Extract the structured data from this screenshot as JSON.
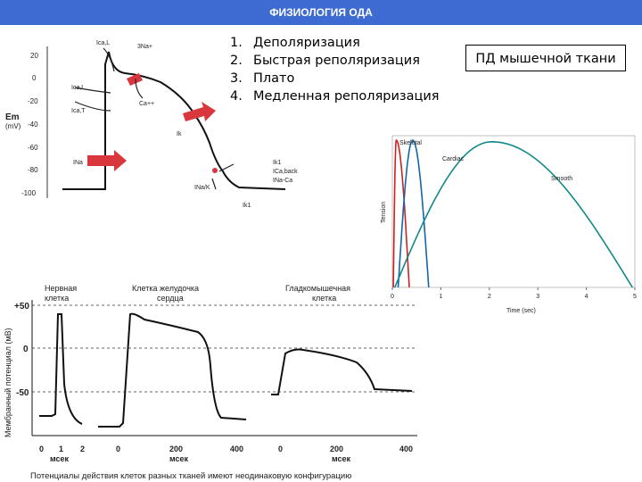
{
  "header": {
    "title": "ФИЗИОЛОГИЯ ОДА"
  },
  "phases": [
    {
      "num": "1.",
      "label": "Деполяризация"
    },
    {
      "num": "2.",
      "label": "Быстрая реполяризация"
    },
    {
      "num": "3.",
      "label": "Плато"
    },
    {
      "num": "4.",
      "label": "Медленная реполяризация"
    }
  ],
  "muscle_label": "ПД мышечной ткани",
  "cardiac_ap": {
    "y_axis_label": "Em",
    "y_axis_unit": "(mV)",
    "y_ticks": [
      "20",
      "0",
      "-20",
      "-40",
      "-60",
      "-80",
      "-100"
    ],
    "currents": {
      "ica_l_top": "Ica,L",
      "na_3": "3Na+",
      "ica_l_mid": "Ica,L",
      "ica_t": "Ica,T",
      "ca": "Ca++",
      "ik": "Ik",
      "ina": "INa",
      "ik1": "Ik1",
      "ica_back": "ICa,back",
      "ina_ca": "INa-Ca",
      "inaka": "INa/K",
      "ik1_bottom": "Ik1"
    }
  },
  "twitch_chart": {
    "colors": {
      "skeletal": "#cc2222",
      "cardiac": "#1166aa",
      "smooth": "#118888"
    },
    "legend": {
      "skeletal": "Skeletal",
      "cardiac": "Cardiac",
      "smooth": "Smooth"
    },
    "y_label": "Tension",
    "x_label": "Time (sec)",
    "x_ticks": [
      "0",
      "1",
      "2",
      "3",
      "4",
      "5"
    ]
  },
  "tissues_chart": {
    "y_label": "Мембранный потенциал (мВ)",
    "y_ticks": [
      "+50",
      "0",
      "-50"
    ],
    "panels": [
      {
        "title1": "Нервная",
        "title2": "клетка",
        "ticks": [
          "0",
          "1",
          "2"
        ],
        "unit": "мсек"
      },
      {
        "title1": "Клетка желудочка",
        "title2": "сердца",
        "ticks": [
          "0",
          "200",
          "400"
        ],
        "unit": "мсек"
      },
      {
        "title1": "Гладкомышечная",
        "title2": "клетка",
        "ticks": [
          "0",
          "200",
          "400"
        ],
        "unit": "мсек"
      }
    ],
    "caption": "Потенциалы действия клеток разных тканей имеют неодинаковую конфигурацию"
  }
}
